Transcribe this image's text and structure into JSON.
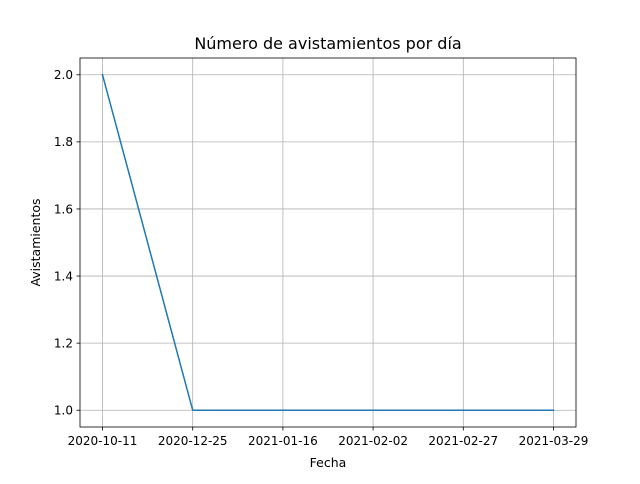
{
  "chart_data": {
    "type": "line",
    "title": "Número de avistamientos por día",
    "xlabel": "Fecha",
    "ylabel": "Avistamientos",
    "categories": [
      "2020-10-11",
      "2020-12-25",
      "2021-01-16",
      "2021-02-02",
      "2021-02-27",
      "2021-03-29"
    ],
    "series": [
      {
        "values": [
          2.0,
          1.0,
          1.0,
          1.0,
          1.0,
          1.0
        ],
        "color": "#1f77b4"
      }
    ],
    "ylim": [
      0.95,
      2.05
    ],
    "yticks": [
      1.0,
      1.2,
      1.4,
      1.6,
      1.8,
      2.0
    ],
    "ytick_labels": [
      "1.0",
      "1.2",
      "1.4",
      "1.6",
      "1.8",
      "2.0"
    ],
    "grid": true,
    "legend": "none"
  }
}
